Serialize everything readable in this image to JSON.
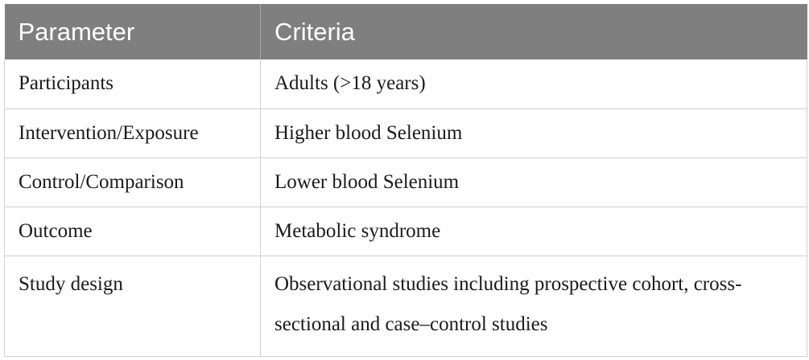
{
  "table": {
    "headers": [
      "Parameter",
      "Criteria"
    ],
    "rows": [
      {
        "parameter": "Participants",
        "criteria": "Adults (>18 years)"
      },
      {
        "parameter": "Intervention/Exposure",
        "criteria": "Higher blood Selenium"
      },
      {
        "parameter": "Control/Comparison",
        "criteria": "Lower blood Selenium"
      },
      {
        "parameter": "Outcome",
        "criteria": "Metabolic syndrome"
      },
      {
        "parameter": "Study design",
        "criteria": "Observational studies including prospective cohort, cross-sectional and case–control studies"
      }
    ]
  }
}
